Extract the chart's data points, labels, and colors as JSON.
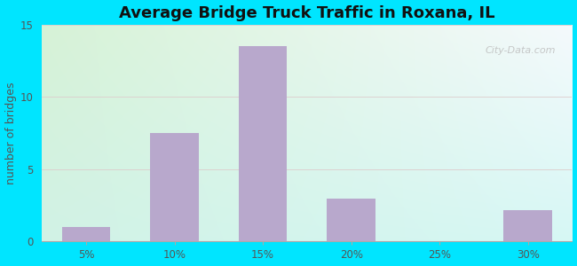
{
  "title": "Average Bridge Truck Traffic in Roxana, IL",
  "ylabel": "number of bridges",
  "categories": [
    "5%",
    "10%",
    "15%",
    "20%",
    "25%",
    "30%"
  ],
  "values": [
    1,
    7.5,
    13.5,
    3,
    0,
    2.2
  ],
  "bar_color": "#b8a8cc",
  "bar_width": 0.55,
  "ylim": [
    0,
    15
  ],
  "yticks": [
    0,
    5,
    10,
    15
  ],
  "title_fontsize": 13,
  "label_fontsize": 9,
  "tick_fontsize": 8.5,
  "fig_bg": "#00e5ff",
  "watermark": "City-Data.com",
  "grid_color": "#ddcccc",
  "grid_linewidth": 0.6,
  "plot_grad_tl": [
    0.84,
    0.95,
    0.84
  ],
  "plot_grad_tr": [
    0.96,
    0.98,
    0.99
  ],
  "plot_grad_bl": [
    0.82,
    0.95,
    0.9
  ],
  "plot_grad_br": [
    0.84,
    0.97,
    0.96
  ]
}
